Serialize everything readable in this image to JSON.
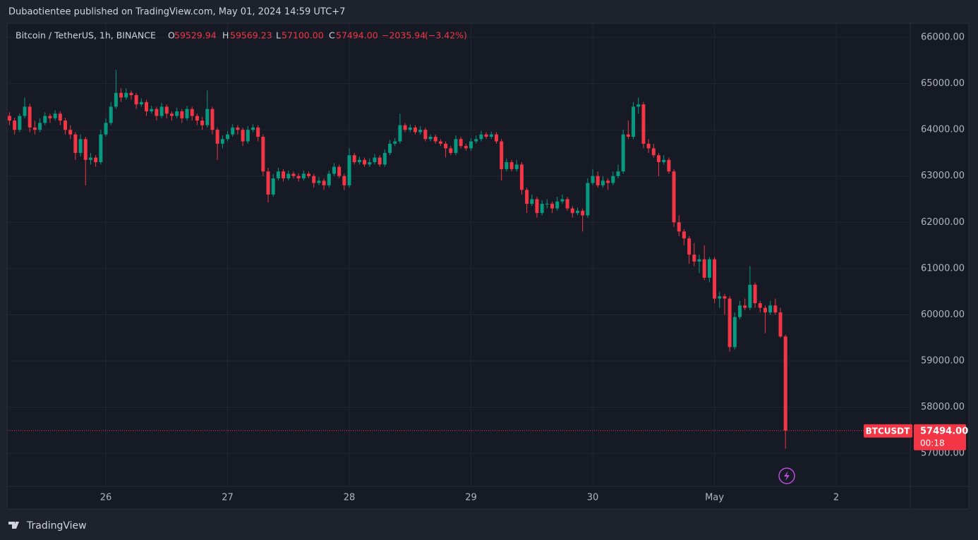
{
  "header": {
    "text": "Dubaotientee published on TradingView.com, May 01, 2024 14:59 UTC+7"
  },
  "footer": {
    "brand": "TradingView"
  },
  "chart_data": {
    "type": "candlestick",
    "title": "Bitcoin / TetherUS, 1h, BINANCE",
    "legend": {
      "open_label": "O",
      "open": "59529.94",
      "high_label": "H",
      "high": "59569.23",
      "low_label": "L",
      "low": "57100.00",
      "close_label": "C",
      "close": "57494.00",
      "change": "−2035.94",
      "change_pct": "(−3.42%)"
    },
    "symbol": "BTCUSDT",
    "last_price": {
      "value": 57494,
      "label": "57494.00"
    },
    "countdown": "00:18",
    "up_color": "#089981",
    "down_color": "#f23645",
    "grid": true,
    "xlim": [
      -0.34,
      177.6
    ],
    "xticks": [
      {
        "value": 19,
        "label": "26"
      },
      {
        "value": 43,
        "label": "27"
      },
      {
        "value": 67,
        "label": "28"
      },
      {
        "value": 91,
        "label": "29"
      },
      {
        "value": 115,
        "label": "30"
      },
      {
        "value": 139,
        "label": "May"
      },
      {
        "value": 163,
        "label": "2"
      }
    ],
    "ylim": [
      56286,
      66290
    ],
    "yticks": [
      {
        "value": 57000,
        "label": "57000.00"
      },
      {
        "value": 58000,
        "label": "58000.00"
      },
      {
        "value": 59000,
        "label": "59000.00"
      },
      {
        "value": 60000,
        "label": "60000.00"
      },
      {
        "value": 61000,
        "label": "61000.00"
      },
      {
        "value": 62000,
        "label": "62000.00"
      },
      {
        "value": 63000,
        "label": "63000.00"
      },
      {
        "value": 64000,
        "label": "64000.00"
      },
      {
        "value": 65000,
        "label": "65000.00"
      },
      {
        "value": 66000,
        "label": "66000.00"
      }
    ],
    "ohlc": [
      [
        64300,
        64380,
        64100,
        64200
      ],
      [
        64200,
        64260,
        63900,
        64000
      ],
      [
        64000,
        64350,
        63950,
        64300
      ],
      [
        64300,
        64700,
        64250,
        64500
      ],
      [
        64500,
        64560,
        63950,
        64050
      ],
      [
        64050,
        64200,
        63900,
        64000
      ],
      [
        64000,
        64250,
        63950,
        64150
      ],
      [
        64150,
        64380,
        64100,
        64300
      ],
      [
        64300,
        64350,
        64150,
        64250
      ],
      [
        64250,
        64420,
        64200,
        64350
      ],
      [
        64350,
        64400,
        64100,
        64200
      ],
      [
        64200,
        64260,
        63900,
        64000
      ],
      [
        64000,
        64100,
        63800,
        63900
      ],
      [
        63900,
        63950,
        63350,
        63500
      ],
      [
        63500,
        63900,
        63420,
        63800
      ],
      [
        63800,
        63850,
        62800,
        63350
      ],
      [
        63350,
        63500,
        63250,
        63400
      ],
      [
        63400,
        63450,
        63200,
        63300
      ],
      [
        63300,
        64000,
        63250,
        63900
      ],
      [
        63900,
        64250,
        63850,
        64150
      ],
      [
        64150,
        64600,
        64100,
        64500
      ],
      [
        64500,
        65300,
        64450,
        64800
      ],
      [
        64800,
        64900,
        64600,
        64700
      ],
      [
        64700,
        64900,
        64650,
        64800
      ],
      [
        64800,
        64850,
        64650,
        64750
      ],
      [
        64750,
        64800,
        64450,
        64550
      ],
      [
        64550,
        64680,
        64500,
        64600
      ],
      [
        64600,
        64650,
        64300,
        64400
      ],
      [
        64400,
        64520,
        64350,
        64450
      ],
      [
        64450,
        64500,
        64200,
        64300
      ],
      [
        64300,
        64580,
        64250,
        64500
      ],
      [
        64500,
        64550,
        64250,
        64350
      ],
      [
        64350,
        64400,
        64200,
        64300
      ],
      [
        64300,
        64480,
        64250,
        64400
      ],
      [
        64400,
        64450,
        64150,
        64250
      ],
      [
        64250,
        64520,
        64200,
        64450
      ],
      [
        64450,
        64500,
        64200,
        64300
      ],
      [
        64300,
        64350,
        64100,
        64200
      ],
      [
        64200,
        64280,
        64000,
        64100
      ],
      [
        64100,
        64850,
        64050,
        64450
      ],
      [
        64450,
        64500,
        63900,
        64000
      ],
      [
        64000,
        64050,
        63350,
        63700
      ],
      [
        63700,
        63880,
        63600,
        63800
      ],
      [
        63800,
        63980,
        63750,
        63900
      ],
      [
        63900,
        64120,
        63850,
        64050
      ],
      [
        64050,
        64100,
        63900,
        64000
      ],
      [
        64000,
        64050,
        63650,
        63750
      ],
      [
        63750,
        64080,
        63700,
        64000
      ],
      [
        64000,
        64120,
        63950,
        64050
      ],
      [
        64050,
        64100,
        63750,
        63850
      ],
      [
        63850,
        63900,
        63000,
        63100
      ],
      [
        63100,
        63180,
        62430,
        62600
      ],
      [
        62600,
        63050,
        62550,
        62950
      ],
      [
        62950,
        63180,
        62900,
        63100
      ],
      [
        63100,
        63150,
        62880,
        62950
      ],
      [
        62950,
        63120,
        62900,
        63050
      ],
      [
        63050,
        63100,
        62950,
        63000
      ],
      [
        63000,
        63060,
        62880,
        62950
      ],
      [
        62950,
        63120,
        62900,
        63050
      ],
      [
        63050,
        63100,
        62950,
        63000
      ],
      [
        63000,
        63050,
        62750,
        62850
      ],
      [
        62850,
        62980,
        62800,
        62900
      ],
      [
        62900,
        62950,
        62700,
        62800
      ],
      [
        62800,
        63120,
        62750,
        63050
      ],
      [
        63050,
        63280,
        63000,
        63200
      ],
      [
        63200,
        63250,
        62950,
        63000
      ],
      [
        63000,
        63050,
        62700,
        62800
      ],
      [
        62800,
        63600,
        62750,
        63450
      ],
      [
        63450,
        63500,
        63250,
        63300
      ],
      [
        63300,
        63420,
        63250,
        63350
      ],
      [
        63350,
        63400,
        63200,
        63250
      ],
      [
        63250,
        63380,
        63200,
        63300
      ],
      [
        63300,
        63480,
        63250,
        63400
      ],
      [
        63400,
        63450,
        63200,
        63250
      ],
      [
        63250,
        63580,
        63200,
        63500
      ],
      [
        63500,
        63780,
        63450,
        63700
      ],
      [
        63700,
        63820,
        63650,
        63750
      ],
      [
        63750,
        64350,
        63700,
        64100
      ],
      [
        64100,
        64150,
        63950,
        64000
      ],
      [
        64000,
        64120,
        63950,
        64050
      ],
      [
        64050,
        64100,
        63900,
        63950
      ],
      [
        63950,
        64080,
        63900,
        64000
      ],
      [
        64000,
        64050,
        63750,
        63800
      ],
      [
        63800,
        63900,
        63750,
        63850
      ],
      [
        63850,
        63900,
        63700,
        63750
      ],
      [
        63750,
        63800,
        63650,
        63700
      ],
      [
        63700,
        63750,
        63400,
        63600
      ],
      [
        63600,
        63650,
        63450,
        63500
      ],
      [
        63500,
        63880,
        63450,
        63800
      ],
      [
        63800,
        63850,
        63600,
        63650
      ],
      [
        63650,
        63700,
        63550,
        63600
      ],
      [
        63600,
        63820,
        63550,
        63750
      ],
      [
        63750,
        63880,
        63700,
        63800
      ],
      [
        63800,
        63980,
        63750,
        63900
      ],
      [
        63900,
        63950,
        63800,
        63850
      ],
      [
        63850,
        63960,
        63800,
        63900
      ],
      [
        63900,
        63950,
        63700,
        63750
      ],
      [
        63750,
        63800,
        62900,
        63150
      ],
      [
        63150,
        63380,
        63100,
        63300
      ],
      [
        63300,
        63350,
        63100,
        63150
      ],
      [
        63150,
        63350,
        63100,
        63250
      ],
      [
        63250,
        63300,
        62600,
        62700
      ],
      [
        62700,
        62750,
        62200,
        62400
      ],
      [
        62400,
        62600,
        62350,
        62500
      ],
      [
        62500,
        62550,
        62100,
        62200
      ],
      [
        62200,
        62480,
        62150,
        62400
      ],
      [
        62400,
        62500,
        62300,
        62400
      ],
      [
        62400,
        62450,
        62200,
        62300
      ],
      [
        62300,
        62550,
        62250,
        62450
      ],
      [
        62450,
        62600,
        62400,
        62500
      ],
      [
        62500,
        62550,
        62250,
        62300
      ],
      [
        62300,
        62350,
        62100,
        62200
      ],
      [
        62200,
        62320,
        62150,
        62250
      ],
      [
        62250,
        62300,
        61800,
        62150
      ],
      [
        62150,
        62950,
        62100,
        62850
      ],
      [
        62850,
        63150,
        62800,
        63000
      ],
      [
        63000,
        63100,
        62750,
        62800
      ],
      [
        62800,
        63000,
        62750,
        62900
      ],
      [
        62900,
        62950,
        62700,
        62850
      ],
      [
        62850,
        63100,
        62800,
        63000
      ],
      [
        63000,
        63250,
        62950,
        63100
      ],
      [
        63100,
        64000,
        63050,
        63900
      ],
      [
        63900,
        64200,
        63800,
        63850
      ],
      [
        63850,
        64600,
        63800,
        64500
      ],
      [
        64500,
        64700,
        64350,
        64550
      ],
      [
        64550,
        64600,
        63600,
        63700
      ],
      [
        63700,
        63800,
        63500,
        63600
      ],
      [
        63600,
        63700,
        63400,
        63450
      ],
      [
        63450,
        63500,
        63000,
        63300
      ],
      [
        63300,
        63450,
        63250,
        63350
      ],
      [
        63350,
        63400,
        63050,
        63100
      ],
      [
        63100,
        63150,
        61900,
        62000
      ],
      [
        62000,
        62150,
        61700,
        61800
      ],
      [
        61800,
        61850,
        61500,
        61650
      ],
      [
        61650,
        61700,
        61100,
        61300
      ],
      [
        61300,
        61550,
        61050,
        61150
      ],
      [
        61150,
        61300,
        60900,
        61200
      ],
      [
        61200,
        61500,
        60750,
        60800
      ],
      [
        60800,
        61250,
        60700,
        61200
      ],
      [
        61200,
        61250,
        60250,
        60350
      ],
      [
        60350,
        60500,
        60150,
        60400
      ],
      [
        60400,
        60450,
        60000,
        60350
      ],
      [
        60350,
        60400,
        59200,
        59300
      ],
      [
        59300,
        60050,
        59250,
        59950
      ],
      [
        59950,
        60300,
        59900,
        60200
      ],
      [
        60200,
        60350,
        60100,
        60150
      ],
      [
        60150,
        61050,
        60100,
        60650
      ],
      [
        60650,
        60700,
        60150,
        60250
      ],
      [
        60250,
        60300,
        60050,
        60150
      ],
      [
        60150,
        60200,
        59600,
        60050
      ],
      [
        60050,
        60300,
        60000,
        60200
      ],
      [
        60200,
        60350,
        60000,
        60050
      ],
      [
        60050,
        60150,
        59500,
        59530
      ],
      [
        59529.94,
        59569.23,
        57100,
        57494
      ]
    ]
  }
}
